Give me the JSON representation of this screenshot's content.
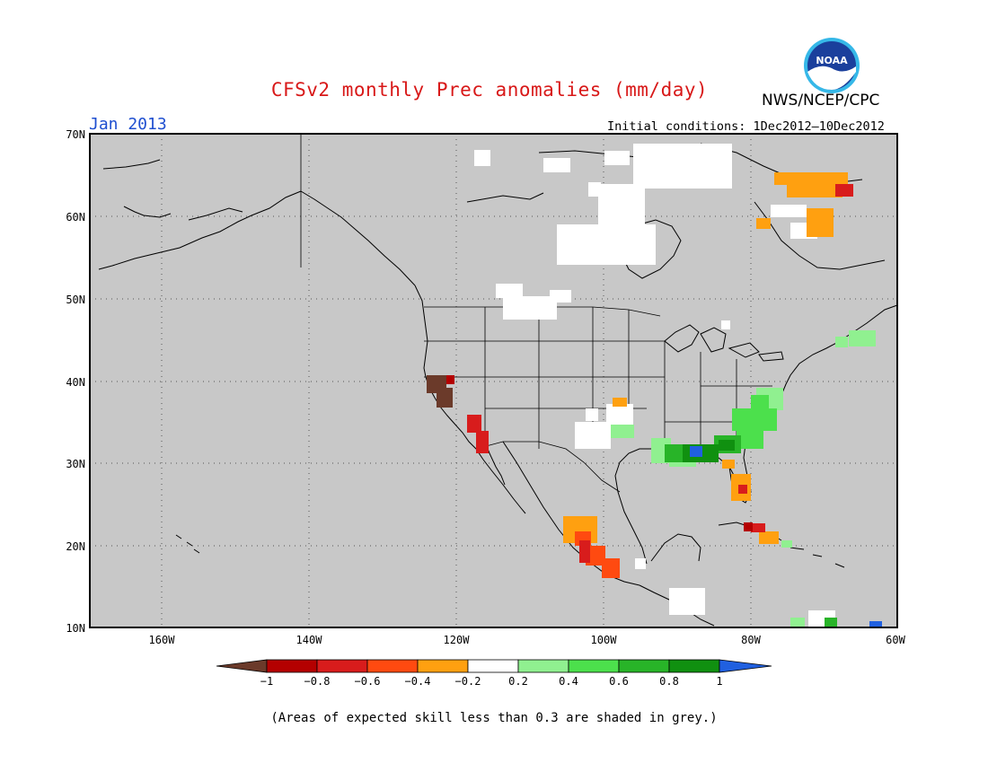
{
  "header": {
    "title": "CFSv2 monthly Prec anomalies (mm/day)",
    "org": "NWS/NCEP/CPC",
    "period": "Jan 2013",
    "initial_conditions": "Initial conditions: 1Dec2012–10Dec2012",
    "logo_text": "NOAA"
  },
  "map": {
    "lat_labels": [
      "70N",
      "60N",
      "50N",
      "40N",
      "30N",
      "20N",
      "10N"
    ],
    "lon_labels": [
      "160W",
      "140W",
      "120W",
      "100W",
      "80W",
      "60W"
    ],
    "land_color": "#c8c8c8",
    "coast_color": "#000000"
  },
  "legend": {
    "ticks": [
      "−1",
      "−0.8",
      "−0.6",
      "−0.4",
      "−0.2",
      "0.2",
      "0.4",
      "0.6",
      "0.8",
      "1"
    ],
    "colors": [
      "#6b3a2a",
      "#b40000",
      "#d81c1c",
      "#ff4a10",
      "#ffa010",
      "#ffffff",
      "#90f090",
      "#4ce04c",
      "#28b428",
      "#109010",
      "#2060e0"
    ]
  },
  "footnote": "(Areas of expected skill less than 0.3 are shaded in grey.)"
}
